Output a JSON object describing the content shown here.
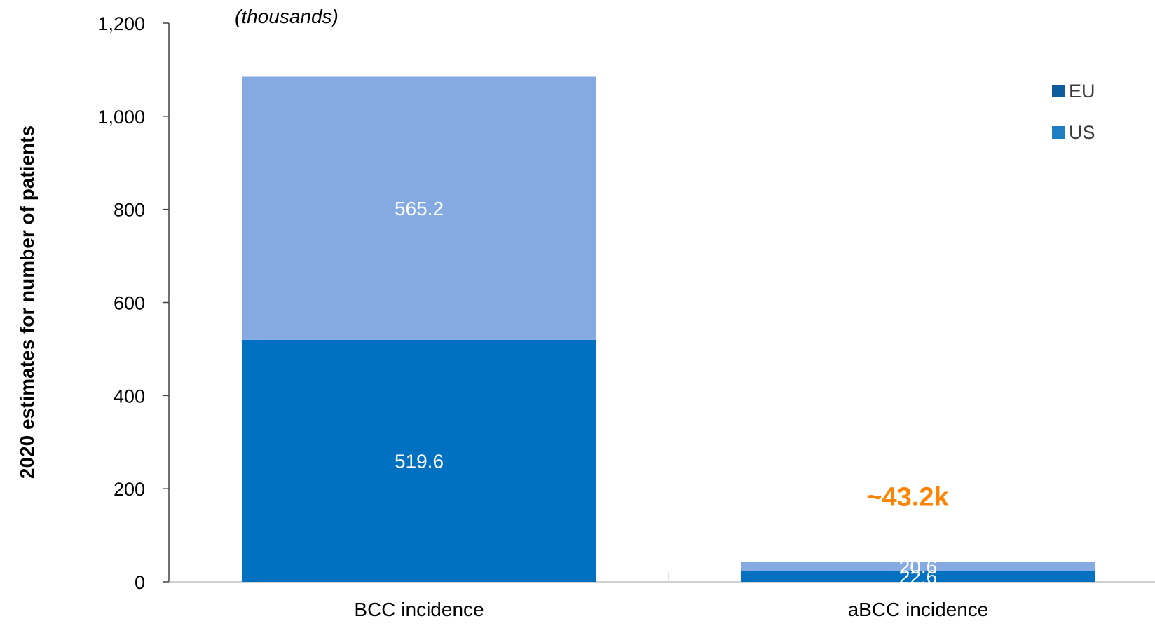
{
  "chart_data": {
    "type": "bar",
    "stacked": true,
    "units_note": "(thousands)",
    "ylabel": "2020 estimates for number of patients",
    "xlabel": "",
    "ylim": [
      0,
      1200
    ],
    "yticks": [
      0,
      200,
      400,
      600,
      800,
      1000,
      1200
    ],
    "ytick_labels": [
      "0",
      "200",
      "400",
      "600",
      "800",
      "1,000",
      "1,200"
    ],
    "categories": [
      "BCC incidence",
      "aBCC incidence"
    ],
    "series": [
      {
        "name": "EU",
        "legend_color": "#0E5C9E",
        "bar_color": "#0070C0",
        "values": [
          519.6,
          22.6
        ],
        "value_labels": [
          "519.6",
          "22.6"
        ]
      },
      {
        "name": "US",
        "legend_color": "#1F7DC4",
        "bar_color": "#85AAE2",
        "values": [
          565.2,
          20.6
        ],
        "value_labels": [
          "565.2",
          "20.6"
        ]
      }
    ],
    "legend_position": "top-right",
    "grid": false,
    "annotations": [
      {
        "text": "~43.2k",
        "category_index": 1,
        "color": "#FF8200"
      }
    ]
  }
}
